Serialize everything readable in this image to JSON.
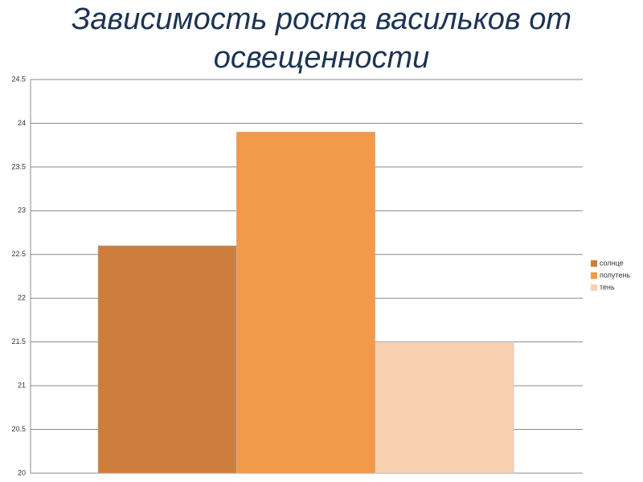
{
  "chart_data": {
    "type": "bar",
    "title": "Зависимость роста васильков от освещенности",
    "series": [
      {
        "name": "солнце",
        "color": "#cd7e3c",
        "values": [
          22.6
        ]
      },
      {
        "name": "полутень",
        "color": "#f3994a",
        "values": [
          23.9
        ]
      },
      {
        "name": "тень",
        "color": "#f9d0b0",
        "values": [
          21.5
        ]
      }
    ],
    "ylim": [
      20,
      24.5
    ],
    "yticks": [
      20,
      20.5,
      21,
      21.5,
      22,
      22.5,
      23,
      23.5,
      24,
      24.5
    ],
    "grid": true,
    "legend": "right"
  }
}
